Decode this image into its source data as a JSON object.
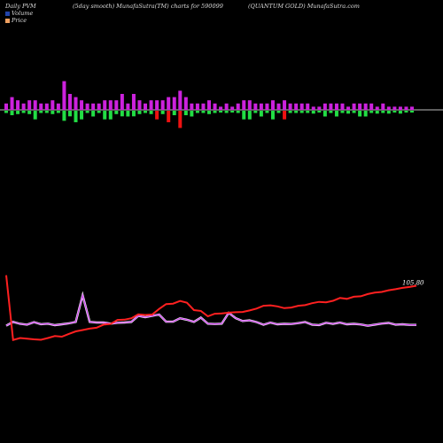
{
  "header": {
    "left": "Daily PVM",
    "center": "(5day smooth) MunafaSutra(TM) charts for 590099",
    "right": "(QUANTUM GOLD) MunafaSutra.com"
  },
  "legend": {
    "volume_label": "Volume",
    "price_label": "Price",
    "volume_color": "#2244aa",
    "price_color": "#f0a060"
  },
  "chart_data": {
    "type": "line",
    "xlabel": "",
    "ylabel": "",
    "grid": false,
    "series": [
      {
        "kind": "line",
        "color": "#cc44ee",
        "values": [
          48.5,
          51.0,
          49.7,
          49.2,
          50.8,
          49.5,
          49.8,
          48.8,
          49.4,
          50.0,
          51.0,
          68.7,
          51.0,
          50.6,
          50.6,
          49.8,
          50.4,
          50.6,
          51.0,
          55.0,
          54.1,
          55.0,
          55.9,
          51.1,
          51.1,
          53.4,
          52.4,
          51.0,
          53.8,
          49.8,
          49.6,
          49.8,
          57.0,
          53.5,
          51.6,
          52.0,
          50.9,
          49.1,
          50.5,
          49.4,
          49.7,
          49.6,
          50.2,
          50.9,
          49.2,
          48.9,
          50.4,
          49.7,
          50.5,
          49.4,
          49.7,
          49.3,
          48.4,
          49.2,
          49.9,
          50.3,
          49.2,
          49.4,
          49.0,
          49.0
        ]
      },
      {
        "kind": "line",
        "color": "#ff2020",
        "end_label": "105.80",
        "values": [
          82.0,
          39.0,
          40.3,
          39.8,
          39.4,
          39.1,
          40.3,
          41.6,
          41.2,
          43.0,
          44.7,
          45.6,
          46.5,
          47.1,
          49.2,
          49.6,
          52.3,
          52.5,
          53.4,
          56.0,
          55.6,
          55.9,
          59.6,
          62.8,
          63.1,
          64.9,
          63.7,
          58.8,
          58.3,
          54.7,
          56.4,
          56.6,
          57.1,
          57.4,
          57.6,
          58.6,
          59.8,
          61.7,
          62.0,
          61.3,
          60.1,
          60.5,
          61.7,
          62.1,
          63.4,
          64.3,
          64.0,
          65.0,
          66.9,
          66.3,
          67.7,
          68.0,
          69.5,
          70.4,
          70.9,
          72.0,
          72.7,
          73.6,
          74.2,
          75.0
        ]
      }
    ],
    "volume": {
      "values": [
        2,
        4,
        3,
        2,
        3,
        -3,
        2,
        2,
        3,
        2,
        9,
        5,
        -4,
        -3,
        2,
        -2,
        2,
        -3,
        -3,
        3,
        5,
        -2,
        5,
        3,
        2,
        3,
        -3,
        3,
        -4,
        4,
        -6,
        4,
        -2,
        2,
        2,
        3,
        2,
        1,
        2,
        1,
        2,
        -3,
        -3,
        2,
        -2,
        2,
        -3,
        2,
        -3,
        2,
        2,
        2,
        2,
        -1,
        1,
        -2,
        2,
        -2,
        2,
        -1,
        2,
        -2,
        -2,
        2,
        -1,
        2,
        -1,
        1,
        -1,
        1,
        1
      ]
    }
  }
}
